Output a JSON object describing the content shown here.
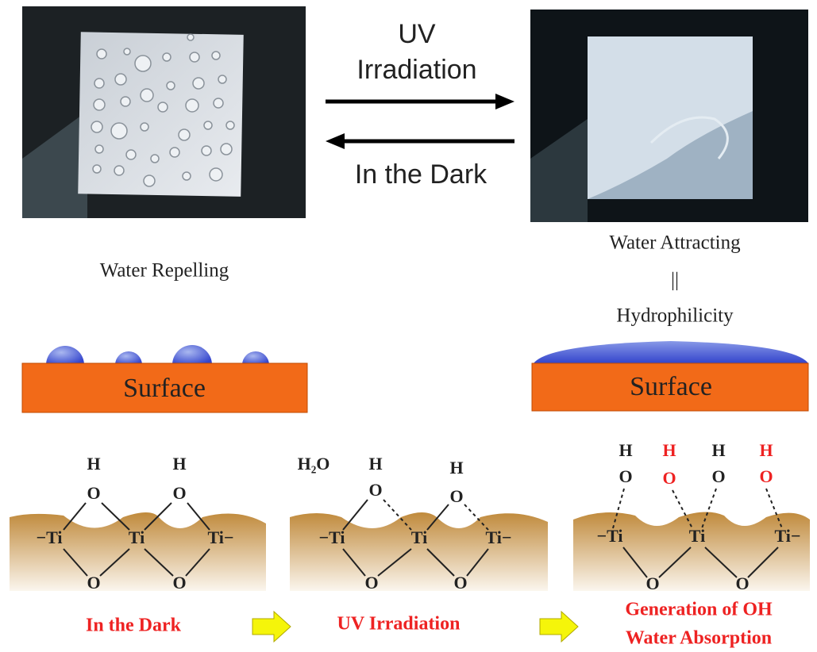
{
  "arrows": {
    "forward_top": "UV",
    "forward_bottom": "Irradiation",
    "backward": "In the Dark"
  },
  "left": {
    "caption": "Water Repelling",
    "surface": "Surface"
  },
  "right": {
    "caption": [
      "Water Attracting",
      "||",
      "Hydrophilicity"
    ],
    "surface": "Surface"
  },
  "panels": [
    {
      "atoms": [
        "H",
        "H",
        "O",
        "O",
        "−Ti",
        "Ti",
        "Ti−",
        "O",
        "O"
      ],
      "label": [
        "In the Dark"
      ]
    },
    {
      "atoms": [
        "H₂O",
        "H",
        "H",
        "O",
        "O",
        "−Ti",
        "Ti",
        "Ti−",
        "O",
        "O"
      ],
      "label": [
        "UV Irradiation"
      ]
    },
    {
      "atoms": [
        "H",
        "H",
        "H",
        "H",
        "O",
        "O",
        "O",
        "O",
        "−Ti",
        "Ti",
        "Ti−",
        "O",
        "O"
      ],
      "label": [
        "Generation of OH",
        "Water Absorption"
      ]
    }
  ]
}
